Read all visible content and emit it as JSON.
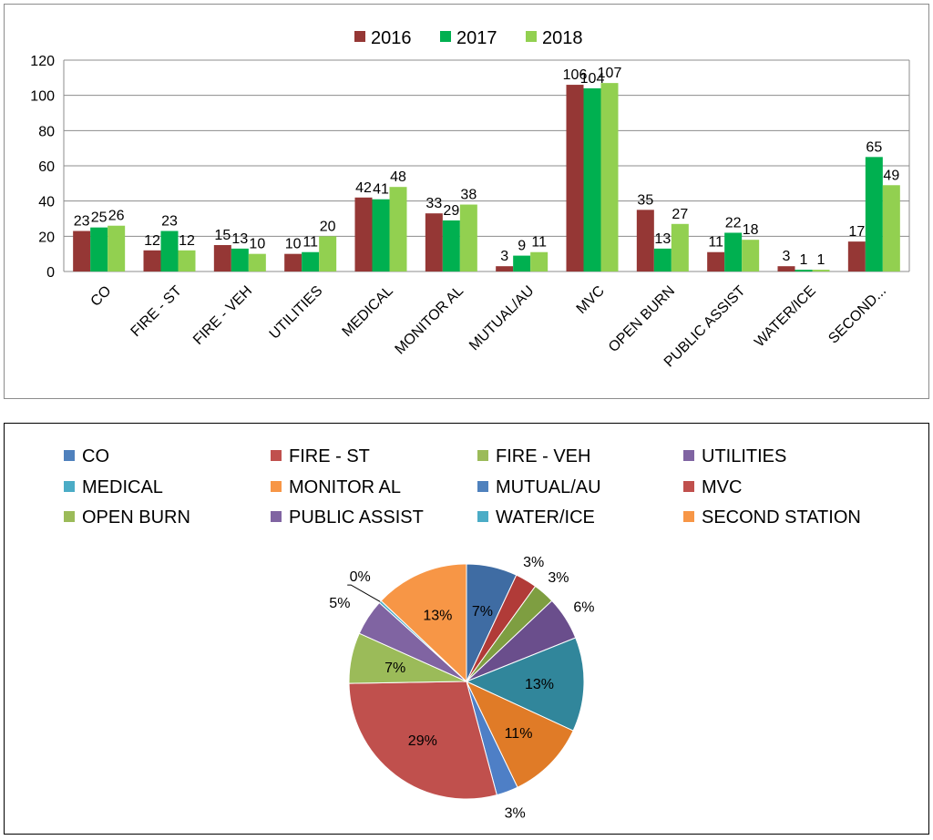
{
  "chart_data": [
    {
      "type": "bar",
      "categories": [
        "CO",
        "FIRE - ST",
        "FIRE - VEH",
        "UTILITIES",
        "MEDICAL",
        "MONITOR AL",
        "MUTUAL/AU",
        "MVC",
        "OPEN BURN",
        "PUBLIC ASSIST",
        "WATER/ICE",
        "SECOND..."
      ],
      "series": [
        {
          "name": "2016",
          "color": "#953735",
          "values": [
            23,
            12,
            15,
            10,
            42,
            33,
            3,
            106,
            35,
            11,
            3,
            17
          ]
        },
        {
          "name": "2017",
          "color": "#00B050",
          "values": [
            25,
            23,
            13,
            11,
            41,
            29,
            9,
            104,
            13,
            22,
            1,
            65
          ]
        },
        {
          "name": "2018",
          "color": "#92D050",
          "values": [
            26,
            12,
            10,
            20,
            48,
            38,
            11,
            107,
            27,
            18,
            1,
            49
          ]
        }
      ],
      "ylim": [
        0,
        120
      ],
      "yticks": [
        0,
        20,
        40,
        60,
        80,
        100,
        120
      ],
      "grid": true,
      "legend": "top-center",
      "title": "",
      "xlabel": "",
      "ylabel": ""
    },
    {
      "type": "pie",
      "labels": [
        "CO",
        "FIRE - ST",
        "FIRE - VEH",
        "UTILITIES",
        "MEDICAL",
        "MONITOR AL",
        "MUTUAL/AU",
        "MVC",
        "OPEN BURN",
        "PUBLIC ASSIST",
        "WATER/ICE",
        "SECOND STATION"
      ],
      "values": [
        7,
        3,
        3,
        6,
        13,
        11,
        3,
        29,
        7,
        5,
        0,
        13
      ],
      "value_labels": [
        "7%",
        "3%",
        "3%",
        "6%",
        "13%",
        "11%",
        "3%",
        "29%",
        "7%",
        "5%",
        "0%",
        "13%"
      ],
      "colors": [
        "#4F81BD",
        "#C0504D",
        "#9BBB59",
        "#8064A2",
        "#4BACC6",
        "#F79646",
        "#4F81BD",
        "#C0504D",
        "#9BBB59",
        "#8064A2",
        "#4BACC6",
        "#F79646"
      ],
      "slice_colors": [
        "#3F6CA3",
        "#B13B38",
        "#7E9E41",
        "#6A4E8C",
        "#31869B",
        "#E07B27",
        "#4E7FC6",
        "#C0504D",
        "#9BBB59",
        "#8064A2",
        "#4BACC6",
        "#F79646"
      ],
      "legend": "top",
      "title": ""
    }
  ]
}
